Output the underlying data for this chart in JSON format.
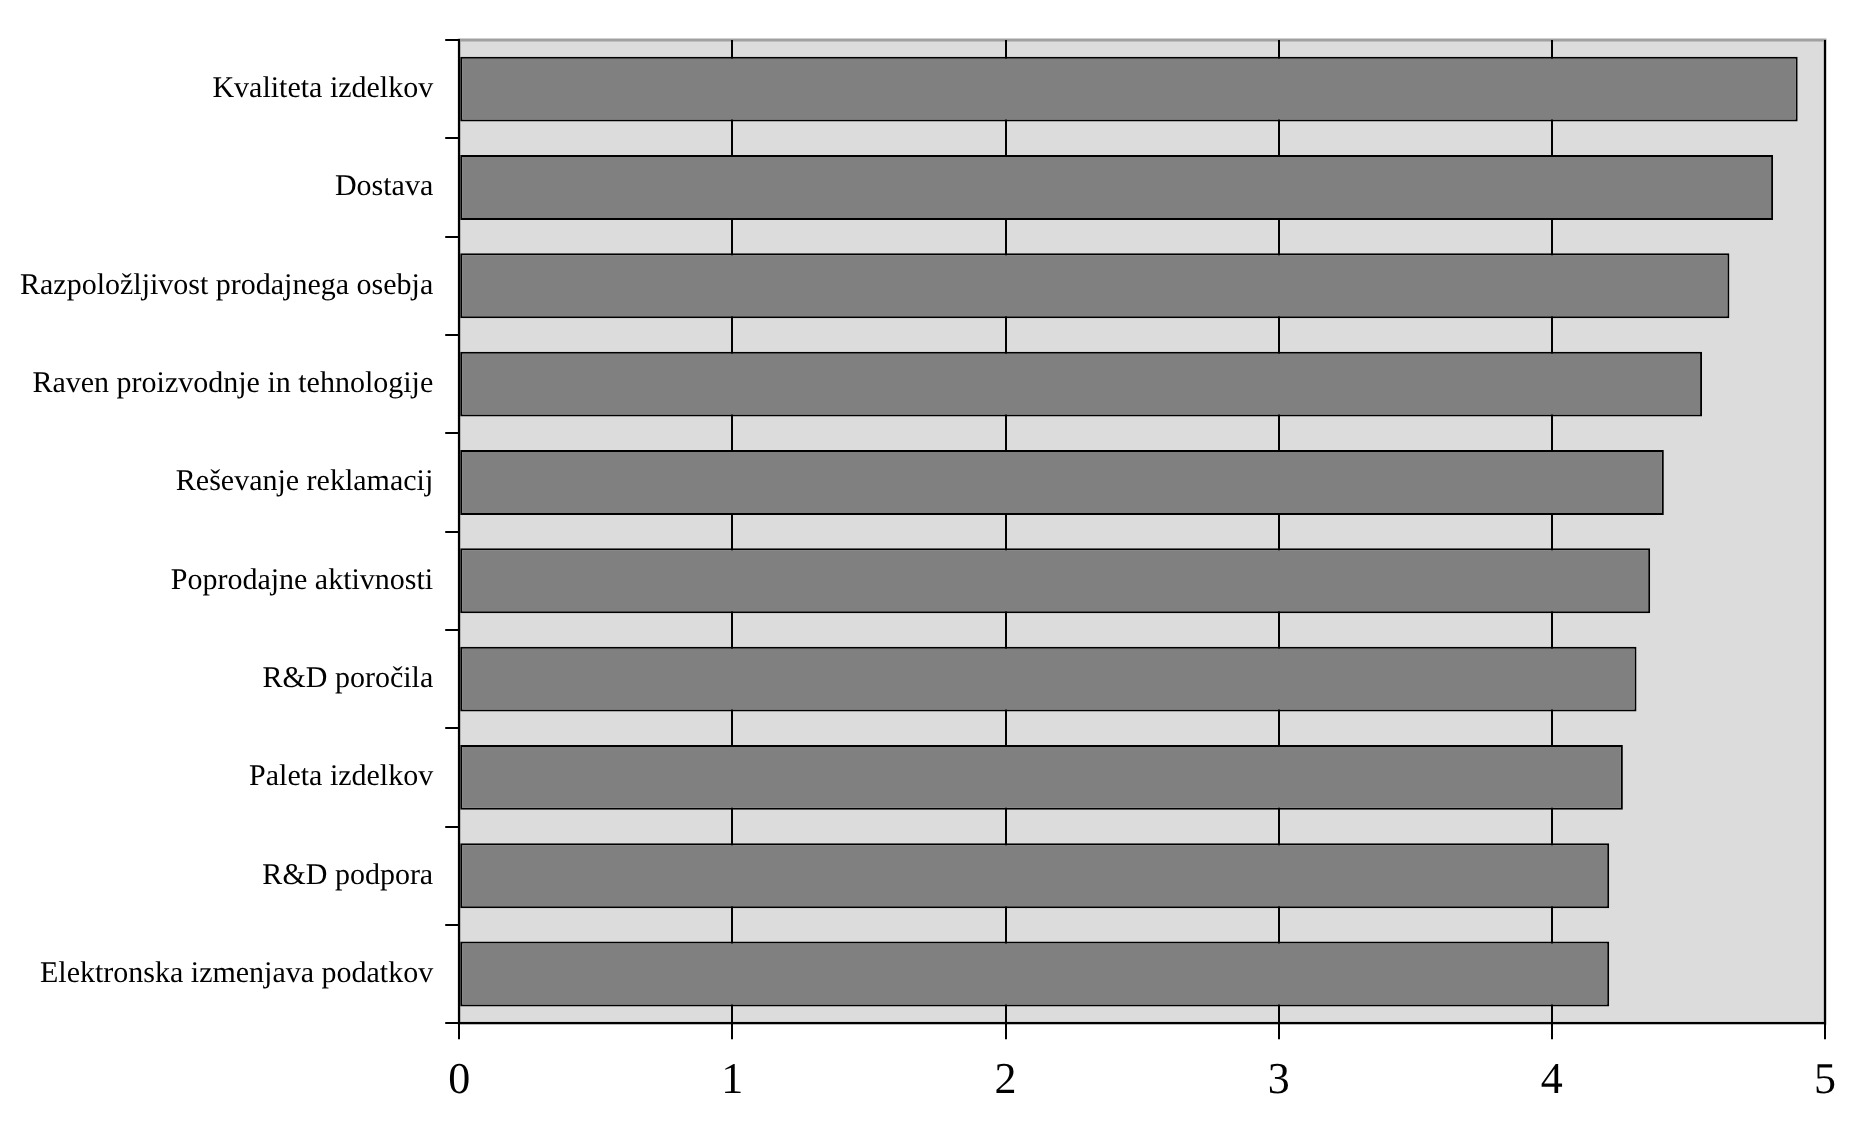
{
  "chart_data": {
    "type": "bar",
    "orientation": "horizontal",
    "categories": [
      "Kvaliteta izdelkov",
      "Dostava",
      "Razpoložljivost prodajnega osebja",
      "Raven proizvodnje in tehnologije",
      "Reševanje reklamacij",
      "Poprodajne aktivnosti",
      "R&D poročila",
      "Paleta izdelkov",
      "R&D podpora",
      "Elektronska izmenjava podatkov"
    ],
    "values": [
      4.9,
      4.81,
      4.65,
      4.55,
      4.41,
      4.36,
      4.31,
      4.26,
      4.21,
      4.21
    ],
    "color": "#808080",
    "xlim": [
      0,
      5
    ],
    "xticks": [
      0,
      1,
      2,
      3,
      4,
      5
    ],
    "grid": "x"
  }
}
